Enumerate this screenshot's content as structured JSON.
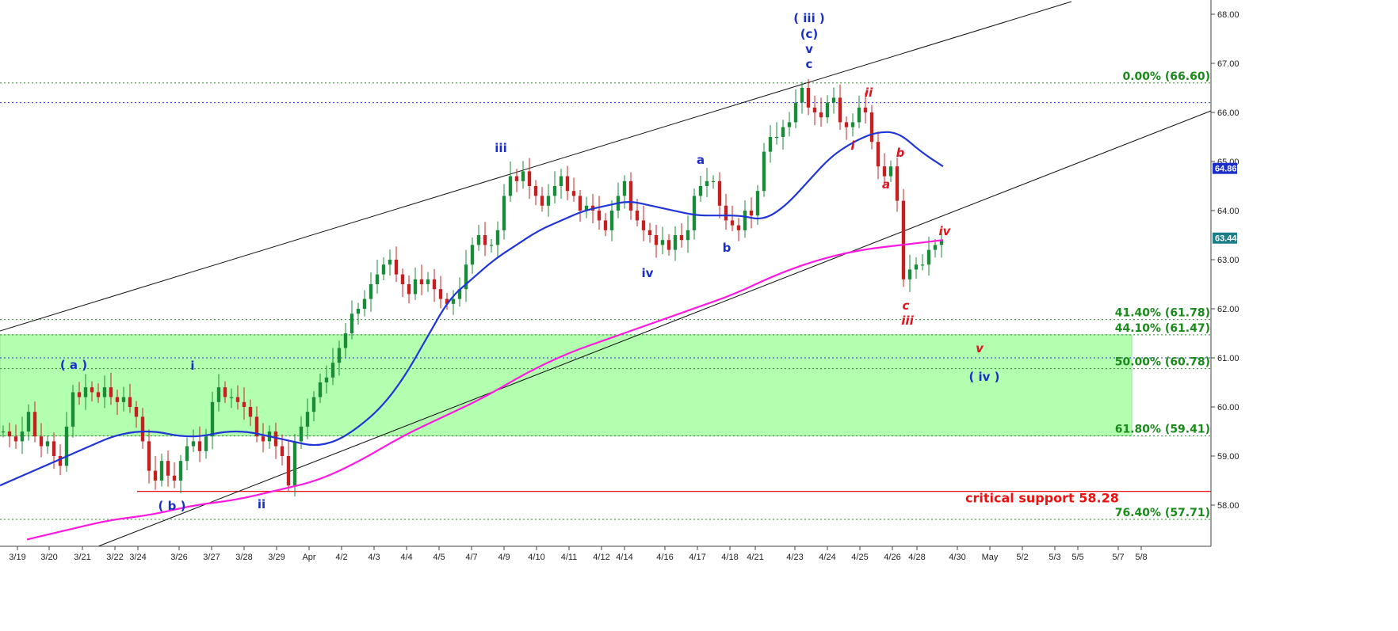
{
  "chart_data": {
    "type": "candlestick",
    "ylim": [
      56.8,
      68.4
    ],
    "y_ticks": [
      "58.00",
      "59.00",
      "60.00",
      "61.00",
      "62.00",
      "63.00",
      "64.00",
      "65.00",
      "66.00",
      "67.00",
      "68.00"
    ],
    "x_ticks": [
      "3/19",
      "3/20",
      "3/21",
      "3/22",
      "3/24",
      "3/26",
      "3/27",
      "3/28",
      "3/29",
      "Apr",
      "4/2",
      "4/3",
      "4/4",
      "4/5",
      "4/7",
      "4/9",
      "4/10",
      "4/11",
      "4/12",
      "4/14",
      "4/16",
      "4/17",
      "4/18",
      "4/21",
      "4/23",
      "4/24",
      "4/25",
      "4/26",
      "4/28",
      "4/30",
      "May",
      "5/2",
      "5/3",
      "5/5",
      "5/7",
      "5/8"
    ],
    "price_badges": [
      {
        "value": "64.86",
        "color": "#1a2fc7"
      },
      {
        "value": "63.44",
        "color": "#1b7f8a"
      }
    ],
    "fib_levels": [
      {
        "label": "0.00% (66.60)",
        "value": 66.6
      },
      {
        "label": "41.40% (61.78)",
        "value": 61.78
      },
      {
        "label": "44.10% (61.47)",
        "value": 61.47
      },
      {
        "label": "50.00% (60.78)",
        "value": 60.78
      },
      {
        "label": "61.80% (59.41)",
        "value": 59.41
      },
      {
        "label": "76.40% (57.71)",
        "value": 57.71
      }
    ],
    "blue_dotted_levels": [
      66.2,
      61.0
    ],
    "support": {
      "label": "critical support 58.28",
      "value": 58.28,
      "color": "#ee1111"
    },
    "zone": {
      "top": 61.47,
      "bottom": 59.41,
      "color": "#b3ffb0"
    },
    "close_series": [
      59.5,
      59.4,
      59.3,
      59.5,
      59.9,
      59.4,
      59.2,
      59.3,
      59.0,
      58.8,
      59.6,
      60.3,
      60.2,
      60.4,
      60.3,
      60.2,
      60.4,
      60.2,
      60.1,
      60.2,
      60.0,
      59.8,
      59.3,
      58.7,
      58.5,
      58.9,
      58.6,
      58.5,
      58.9,
      59.2,
      59.3,
      59.1,
      59.4,
      60.1,
      60.4,
      60.2,
      60.2,
      60.1,
      60.0,
      59.8,
      59.4,
      59.3,
      59.5,
      59.2,
      59.0,
      58.4,
      59.3,
      59.6,
      59.9,
      60.2,
      60.5,
      60.6,
      60.9,
      61.2,
      61.5,
      61.9,
      62.0,
      62.2,
      62.5,
      62.7,
      62.9,
      63.0,
      62.7,
      62.5,
      62.3,
      62.6,
      62.5,
      62.6,
      62.4,
      62.2,
      62.1,
      62.2,
      62.4,
      62.9,
      63.3,
      63.5,
      63.3,
      63.3,
      63.6,
      64.3,
      64.7,
      64.6,
      64.8,
      64.5,
      64.3,
      64.1,
      64.3,
      64.5,
      64.7,
      64.4,
      64.3,
      64.0,
      64.1,
      64.0,
      63.8,
      63.6,
      64.0,
      64.3,
      64.6,
      64.0,
      63.8,
      63.6,
      63.5,
      63.3,
      63.4,
      63.2,
      63.5,
      63.4,
      63.6,
      64.3,
      64.5,
      64.6,
      64.6,
      64.1,
      63.8,
      63.7,
      63.6,
      64.0,
      63.9,
      64.4,
      65.2,
      65.5,
      65.5,
      65.7,
      65.8,
      66.2,
      66.5,
      66.1,
      66.0,
      65.9,
      66.2,
      66.3,
      65.8,
      65.7,
      65.8,
      66.1,
      66.0,
      65.4,
      64.9,
      64.7,
      64.9,
      64.2,
      62.6,
      62.8,
      62.9,
      62.9,
      63.2,
      63.3,
      63.4
    ],
    "series": [
      {
        "kind": "ma-blue",
        "values": [
          58.4,
          58.6,
          58.8,
          59.0,
          59.2,
          59.4,
          59.5,
          59.5,
          59.4,
          59.4,
          59.5,
          59.5,
          59.4,
          59.3,
          59.2,
          59.3,
          59.6,
          60.0,
          60.6,
          61.4,
          62.2,
          62.6,
          63.0,
          63.3,
          63.6,
          63.8,
          64.0,
          64.1,
          64.2,
          64.1,
          64.0,
          63.9,
          63.9,
          63.9,
          63.8,
          64.1,
          64.6,
          65.1,
          65.4,
          65.6,
          65.6,
          65.2,
          64.9
        ]
      },
      {
        "kind": "ma-magenta",
        "values": [
          57.3,
          57.5,
          57.7,
          57.8,
          58.0,
          58.1,
          58.3,
          58.5,
          58.9,
          59.4,
          59.8,
          60.2,
          60.7,
          61.1,
          61.4,
          61.7,
          62.0,
          62.3,
          62.7,
          63.0,
          63.2,
          63.3,
          63.4
        ]
      }
    ],
    "wave_labels": [
      {
        "text": "( a )",
        "color": "#1a2fc7",
        "italic": false
      },
      {
        "text": "i",
        "color": "#1a2fc7",
        "italic": false
      },
      {
        "text": "( b )",
        "color": "#1a2fc7",
        "italic": false
      },
      {
        "text": "ii",
        "color": "#1a2fc7",
        "italic": false
      },
      {
        "text": "iii",
        "color": "#1a2fc7",
        "italic": false
      },
      {
        "text": "iv",
        "color": "#1a2fc7",
        "italic": false
      },
      {
        "text": "a",
        "color": "#1a2fc7",
        "italic": false
      },
      {
        "text": "b",
        "color": "#1a2fc7",
        "italic": false
      },
      {
        "text": "( iii )",
        "color": "#1a2fc7",
        "italic": false
      },
      {
        "text": "(c)",
        "color": "#1a2fc7",
        "italic": false
      },
      {
        "text": "v",
        "color": "#1a2fc7",
        "italic": false
      },
      {
        "text": "c",
        "color": "#1a2fc7",
        "italic": false
      },
      {
        "text": "ii",
        "color": "#e0141e",
        "italic": true
      },
      {
        "text": "i",
        "color": "#e0141e",
        "italic": true
      },
      {
        "text": "b",
        "color": "#e0141e",
        "italic": true
      },
      {
        "text": "a",
        "color": "#e0141e",
        "italic": true
      },
      {
        "text": "c",
        "color": "#e0141e",
        "italic": true
      },
      {
        "text": "iii",
        "color": "#e0141e",
        "italic": true
      },
      {
        "text": "iv",
        "color": "#e0141e",
        "italic": true
      },
      {
        "text": "v",
        "color": "#e0141e",
        "italic": true
      },
      {
        "text": "( iv )",
        "color": "#1a2fc7",
        "italic": false
      }
    ],
    "colors": {
      "fib": "#1a8a1a",
      "fib_line": "#2d8a2d",
      "blue_dotted": "#2030d0",
      "ma_blue": "#1f35d8",
      "ma_magenta": "#ff19e0",
      "up_candle": "#1b8a3a",
      "down_candle": "#c42020",
      "channel": "#111111"
    }
  }
}
